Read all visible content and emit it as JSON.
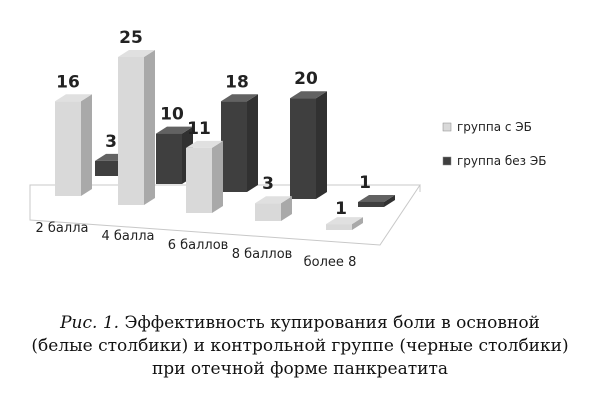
{
  "chart_data": {
    "type": "bar",
    "categories": [
      "2 балла",
      "4 балла",
      "6 баллов",
      "8 баллов",
      "более 8"
    ],
    "series": [
      {
        "name": "группа с ЭБ",
        "values": [
          16,
          25,
          11,
          3,
          1
        ],
        "color": "#d9d9d9"
      },
      {
        "name": "группа без ЭБ",
        "values": [
          3,
          10,
          18,
          20,
          1
        ],
        "color": "#3f3f3f"
      }
    ],
    "ylim": [
      0,
      25
    ],
    "grid": false,
    "legend": "right",
    "title": "",
    "xlabel": "",
    "ylabel": ""
  },
  "caption": {
    "prefix": "Рис. 1.",
    "line1": "Эффективность купирования боли в основной",
    "line2": "(белые столбики) и контрольной группе (черные столбики)",
    "line3": "при отечной форме панкреатита"
  }
}
